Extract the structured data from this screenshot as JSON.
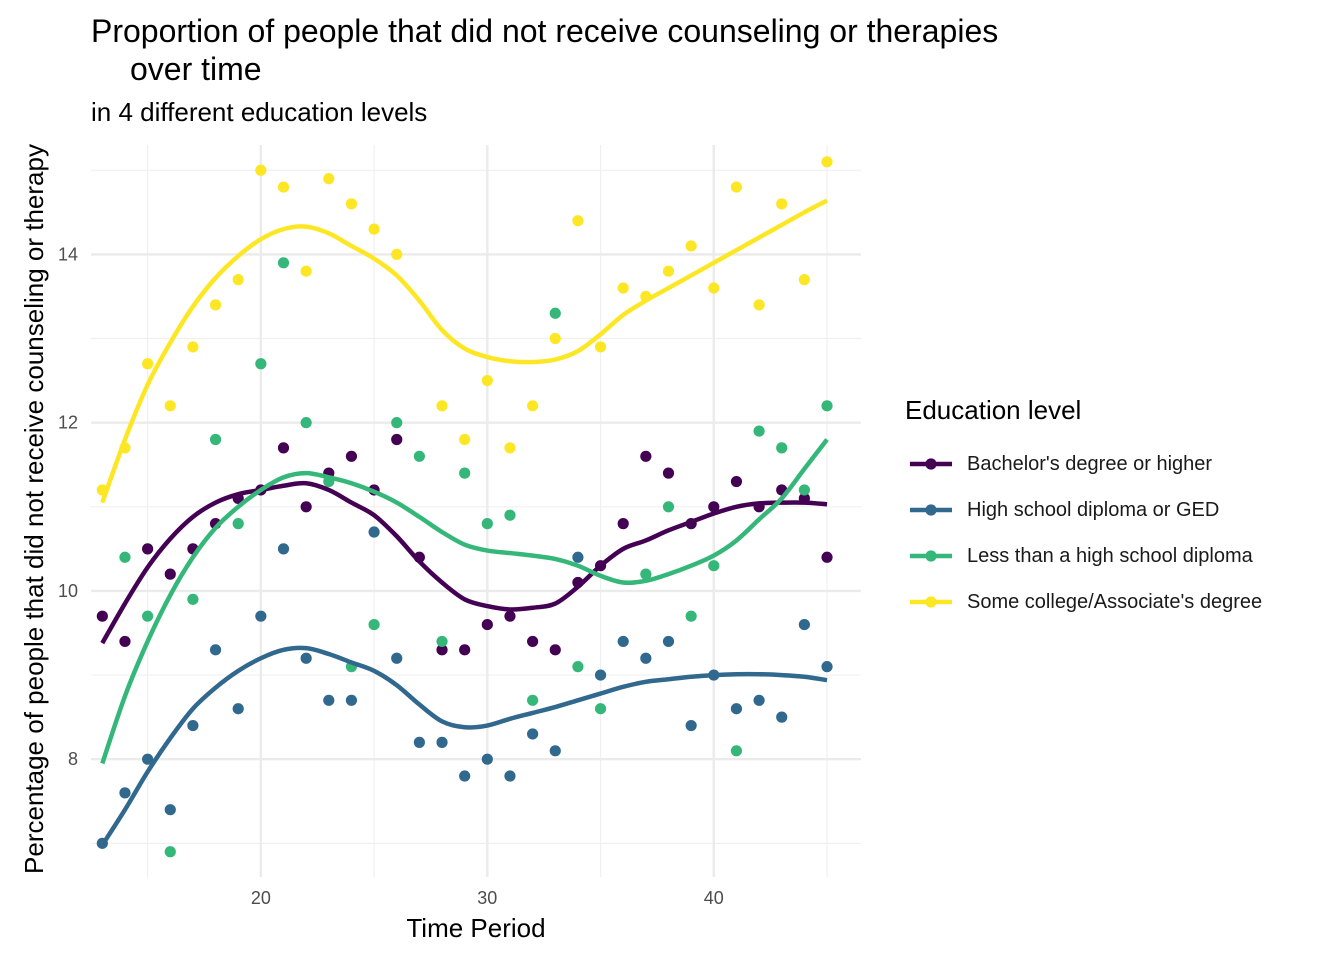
{
  "chart_data": {
    "type": "scatter",
    "title_line1": "Proportion of people that did not receive counseling or therapies",
    "title_line2": "over time",
    "subtitle": "in 4 different education levels",
    "xlabel": "Time Period",
    "ylabel": "Percentage of people that did not receive counseling or therapy",
    "xlim": [
      12.5,
      46.5
    ],
    "ylim": [
      6.6,
      15.3
    ],
    "x_ticks": [
      20,
      30,
      40
    ],
    "y_ticks": [
      8,
      10,
      12,
      14
    ],
    "grid": true,
    "smooth_lines": true,
    "legend_title": "Education level",
    "legend_position": "right",
    "series": [
      {
        "name": "Bachelor's degree or higher",
        "color": "#440154",
        "x": [
          13,
          14,
          15,
          16,
          17,
          18,
          19,
          20,
          21,
          22,
          23,
          24,
          25,
          26,
          27,
          28,
          29,
          30,
          31,
          32,
          33,
          34,
          35,
          36,
          37,
          38,
          39,
          40,
          41,
          42,
          43,
          44,
          45
        ],
        "values": [
          9.7,
          9.4,
          10.5,
          10.2,
          10.5,
          10.8,
          11.1,
          11.2,
          11.7,
          11.0,
          11.4,
          11.6,
          11.2,
          11.8,
          10.4,
          9.3,
          9.3,
          9.6,
          9.7,
          9.4,
          9.3,
          10.1,
          10.3,
          10.8,
          11.6,
          11.4,
          10.8,
          11.0,
          11.3,
          11.0,
          11.2,
          11.1,
          10.4
        ],
        "trend": [
          9.38,
          9.85,
          10.28,
          10.62,
          10.88,
          11.05,
          11.15,
          11.2,
          11.25,
          11.28,
          11.2,
          11.05,
          10.9,
          10.65,
          10.35,
          10.1,
          9.9,
          9.82,
          9.78,
          9.8,
          9.85,
          10.05,
          10.3,
          10.5,
          10.6,
          10.72,
          10.82,
          10.92,
          11.0,
          11.04,
          11.05,
          11.05,
          11.03
        ]
      },
      {
        "name": "High school diploma or GED",
        "color": "#31688E",
        "x": [
          13,
          14,
          15,
          16,
          17,
          18,
          19,
          20,
          21,
          22,
          23,
          24,
          25,
          26,
          27,
          28,
          29,
          30,
          31,
          32,
          33,
          34,
          35,
          36,
          37,
          38,
          39,
          40,
          41,
          42,
          43,
          44,
          45
        ],
        "values": [
          7.0,
          7.6,
          8.0,
          7.4,
          8.4,
          9.3,
          8.6,
          9.7,
          10.5,
          9.2,
          8.7,
          8.7,
          10.7,
          9.2,
          8.2,
          8.2,
          7.8,
          8.0,
          7.8,
          8.3,
          8.1,
          10.4,
          9.0,
          9.4,
          9.2,
          9.4,
          8.4,
          9.0,
          8.6,
          8.7,
          8.5,
          9.6,
          9.1
        ],
        "trend": [
          6.98,
          7.4,
          7.85,
          8.25,
          8.6,
          8.85,
          9.05,
          9.2,
          9.3,
          9.32,
          9.25,
          9.15,
          9.05,
          8.88,
          8.65,
          8.45,
          8.38,
          8.4,
          8.48,
          8.55,
          8.62,
          8.7,
          8.78,
          8.86,
          8.92,
          8.95,
          8.98,
          9.0,
          9.01,
          9.01,
          9.0,
          8.98,
          8.94
        ]
      },
      {
        "name": "Less than a high school diploma",
        "color": "#35B779",
        "x": [
          14,
          15,
          16,
          17,
          18,
          19,
          20,
          21,
          22,
          23,
          24,
          25,
          26,
          27,
          28,
          29,
          30,
          31,
          32,
          33,
          34,
          35,
          37,
          38,
          39,
          40,
          41,
          42,
          43,
          44,
          45
        ],
        "values": [
          10.4,
          9.7,
          6.9,
          9.9,
          11.8,
          10.8,
          12.7,
          13.9,
          12.0,
          11.3,
          9.1,
          9.6,
          12.0,
          11.6,
          9.4,
          11.4,
          10.8,
          10.9,
          8.7,
          13.3,
          9.1,
          8.6,
          10.2,
          11.0,
          9.7,
          10.3,
          8.1,
          11.9,
          11.7,
          11.2,
          12.2
        ],
        "x_trend": [
          13,
          14,
          15,
          16,
          17,
          18,
          19,
          20,
          21,
          22,
          23,
          24,
          25,
          26,
          27,
          28,
          29,
          30,
          31,
          32,
          33,
          34,
          35,
          36,
          37,
          38,
          39,
          40,
          41,
          42,
          43,
          44,
          45
        ],
        "trend": [
          7.95,
          8.75,
          9.4,
          9.95,
          10.4,
          10.75,
          11.0,
          11.2,
          11.35,
          11.4,
          11.35,
          11.28,
          11.18,
          11.05,
          10.88,
          10.7,
          10.55,
          10.48,
          10.45,
          10.42,
          10.38,
          10.3,
          10.18,
          10.1,
          10.12,
          10.2,
          10.3,
          10.42,
          10.6,
          10.85,
          11.1,
          11.45,
          11.8
        ]
      },
      {
        "name": "Some college/Associate's degree",
        "color": "#FDE725",
        "x": [
          13,
          14,
          15,
          16,
          17,
          18,
          19,
          20,
          21,
          22,
          23,
          24,
          25,
          26,
          28,
          29,
          30,
          31,
          32,
          33,
          34,
          35,
          36,
          37,
          38,
          39,
          40,
          41,
          42,
          43,
          44,
          45
        ],
        "values": [
          11.2,
          11.7,
          12.7,
          12.2,
          12.9,
          13.4,
          13.7,
          15.0,
          14.8,
          13.8,
          14.9,
          14.6,
          14.3,
          14.0,
          12.2,
          11.8,
          12.5,
          11.7,
          12.2,
          13.0,
          14.4,
          12.9,
          13.6,
          13.5,
          13.8,
          14.1,
          13.6,
          14.8,
          13.4,
          14.6,
          13.7,
          15.1
        ],
        "x_trend": [
          13,
          14,
          15,
          16,
          17,
          18,
          19,
          20,
          21,
          22,
          23,
          24,
          25,
          26,
          27,
          28,
          29,
          30,
          31,
          32,
          33,
          34,
          35,
          36,
          37,
          38,
          39,
          40,
          41,
          42,
          43,
          44,
          45
        ],
        "trend": [
          11.05,
          11.8,
          12.45,
          12.95,
          13.38,
          13.72,
          13.98,
          14.18,
          14.3,
          14.33,
          14.25,
          14.1,
          13.95,
          13.75,
          13.45,
          13.1,
          12.88,
          12.78,
          12.73,
          12.72,
          12.75,
          12.85,
          13.05,
          13.28,
          13.45,
          13.6,
          13.75,
          13.9,
          14.05,
          14.2,
          14.35,
          14.5,
          14.64
        ]
      }
    ]
  }
}
